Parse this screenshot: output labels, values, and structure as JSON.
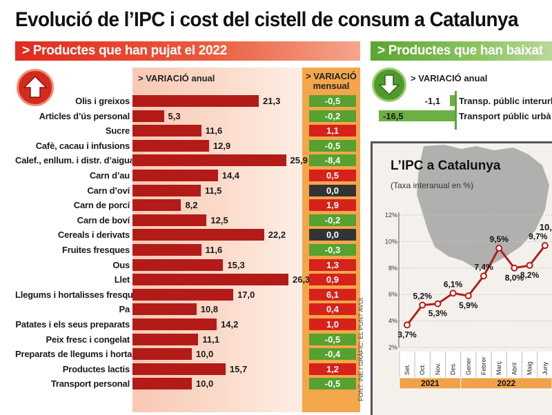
{
  "title": "Evolució de l’IPC i cost del cistell de consum a Catalunya",
  "rise_section": {
    "header": "> Productes que han pujat el 2022",
    "annual_header": "> VARIACIÓ anual",
    "monthly_header": "> VARIACIÓ mensual",
    "monthly_header_line1": "> VARIACIÓ",
    "monthly_header_line2": "mensual"
  },
  "fall_section": {
    "header": "> Productes que han baixat",
    "annual_header": "> VARIACIÓ anual"
  },
  "ipc_section": {
    "title": "L’IPC a Catalunya",
    "subtitle": "(Taxa interanual en %)"
  },
  "source": "FONT: INE / GRÀFIC: EL PUNT AVUI",
  "colors": {
    "bar_red": "#b31b18",
    "bar_green": "#6cb043",
    "box_green": "#56a130",
    "box_red": "#d6221a",
    "box_dark": "#333333",
    "line": "#b51d18",
    "year_band": "#f0a24a"
  },
  "chart_data": [
    {
      "type": "bar",
      "orientation": "horizontal",
      "title": "> Productes que han pujat el 2022",
      "categories": [
        "Olis i greixos",
        "Articles d’ús personal",
        "Sucre",
        "Cafè, cacau i infusions",
        "Calef., enllum. i distr. d’aigua",
        "Carn d’au",
        "Carn d’oví",
        "Carn de porcí",
        "Carn de boví",
        "Cereals i derivats",
        "Fruites fresques",
        "Ous",
        "Llet",
        "Llegums i hortalisses fresques",
        "Pa",
        "Patates i els seus preparats",
        "Peix fresc i congelat",
        "Preparats de llegums i hortalisses",
        "Productes lactis",
        "Transport personal"
      ],
      "series": [
        {
          "name": "> VARIACIÓ anual",
          "values": [
            21.3,
            5.3,
            11.6,
            12.9,
            25.9,
            14.4,
            11.5,
            8.2,
            12.5,
            22.2,
            11.6,
            15.3,
            26.3,
            17.0,
            10.8,
            14.2,
            11.1,
            10.0,
            15.7,
            10.0
          ],
          "labels": [
            "21,3",
            "5,3",
            "11,6",
            "12,9",
            "25,9",
            "14,4",
            "11,5",
            "8,2",
            "12,5",
            "22,2",
            "11,6",
            "15,3",
            "26,3",
            "17,0",
            "10,8",
            "14,2",
            "11,1",
            "10,0",
            "15,7",
            "10,0"
          ]
        },
        {
          "name": "> VARIACIÓ mensual",
          "values": [
            -0.5,
            -0.2,
            1.1,
            -0.5,
            -8.4,
            0.5,
            0.0,
            1.9,
            -0.2,
            0.0,
            -0.3,
            1.3,
            0.9,
            6.1,
            0.4,
            1.0,
            -0.5,
            -0.4,
            1.2,
            -0.5
          ],
          "labels": [
            "-0,5",
            "-0,2",
            "1,1",
            "-0,5",
            "-8,4",
            "0,5",
            "0,0",
            "1,9",
            "-0,2",
            "0,0",
            "-0,3",
            "1,3",
            "0,9",
            "6,1",
            "0,4",
            "1,0",
            "-0,5",
            "-0,4",
            "1,2",
            "-0,5"
          ]
        }
      ]
    },
    {
      "type": "bar",
      "orientation": "horizontal",
      "title": "> Productes que han baixat",
      "categories": [
        "Transp. públic interurbà",
        "Transport públic urbà"
      ],
      "series": [
        {
          "name": "> VARIACIÓ anual",
          "values": [
            -1.1,
            -16.5
          ],
          "labels": [
            "-1,1",
            "-16,5"
          ]
        }
      ]
    },
    {
      "type": "line",
      "title": "L’IPC a Catalunya",
      "subtitle": "(Taxa interanual en %)",
      "x": [
        "Set.",
        "Oct.",
        "Nov.",
        "Des.",
        "Gener",
        "Febrer",
        "Març",
        "Abril",
        "Maig",
        "Juny"
      ],
      "year_bands": [
        {
          "label": "2021",
          "from": "Set.",
          "to": "Des."
        },
        {
          "label": "2022",
          "from": "Gener",
          "to": "Juny"
        }
      ],
      "values": [
        3.7,
        5.2,
        5.3,
        6.1,
        5.9,
        7.4,
        9.5,
        8.0,
        8.2,
        9.7
      ],
      "point_labels": [
        "3,7%",
        "5,2%",
        "5,3%",
        "6,1%",
        "5,9%",
        "7,4%",
        "9,5%",
        "8,0%",
        "8,2%",
        "9,7%"
      ],
      "extra_label": "10,",
      "yticks": [
        "2%",
        "4%",
        "6%",
        "8%",
        "10%",
        "12%"
      ],
      "ylim": [
        2,
        12
      ],
      "grid": true
    }
  ]
}
